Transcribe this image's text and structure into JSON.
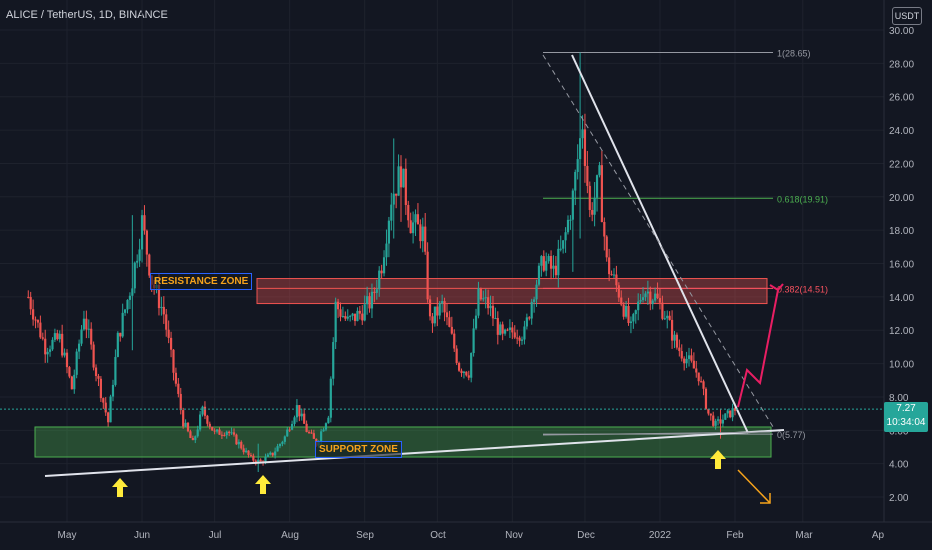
{
  "header": {
    "symbol_line": "ALICE / TetherUS, 1D, BINANCE",
    "currency_badge": "USDT"
  },
  "price_tag": {
    "price": "7.27",
    "countdown": "10:34:04"
  },
  "zones": {
    "resistance_label": "RESISTANCE ZONE",
    "support_label": "SUPPORT ZONE"
  },
  "chart_data": {
    "type": "candlestick",
    "x_axis": {
      "ticks": [
        "May",
        "Jun",
        "Jul",
        "Aug",
        "Sep",
        "Oct",
        "Nov",
        "Dec",
        "2022",
        "Feb",
        "Mar",
        "Ap"
      ]
    },
    "y_axis": {
      "ticks": [
        "30.00",
        "28.00",
        "26.00",
        "24.00",
        "22.00",
        "20.00",
        "18.00",
        "16.00",
        "14.00",
        "12.00",
        "10.00",
        "8.00",
        "6.00",
        "4.00",
        "2.00"
      ],
      "range": [
        0.8,
        30.5
      ]
    },
    "current_price": 7.27,
    "fib_levels": [
      {
        "label": "1(28.65)",
        "value": 28.65,
        "color": "#9598a1"
      },
      {
        "label": "0.618(19.91)",
        "value": 19.91,
        "color": "#4caf50"
      },
      {
        "label": "0.382(14.51)",
        "value": 14.51,
        "color": "#f7525f"
      },
      {
        "label": "0(5.77)",
        "value": 5.77,
        "color": "#9598a1"
      }
    ],
    "resistance_zone": [
      13.6,
      15.1
    ],
    "support_zone": [
      4.4,
      6.2
    ],
    "colors": {
      "up": "#26a69a",
      "down": "#ef5350",
      "background": "#131722"
    },
    "anchors": [
      [
        "Apr 15",
        14
      ],
      [
        "Apr 22",
        11
      ],
      [
        "Apr 28",
        11.5
      ],
      [
        "May 3",
        8.5
      ],
      [
        "May 8",
        13
      ],
      [
        "May 13",
        9.5
      ],
      [
        "May 18",
        6.5
      ],
      [
        "May 22",
        11.5
      ],
      [
        "May 28",
        15
      ],
      [
        "Jun 1",
        18.5
      ],
      [
        "Jun 5",
        15
      ],
      [
        "Jun 10",
        13
      ],
      [
        "Jun 14",
        9.5
      ],
      [
        "Jun 18",
        6.5
      ],
      [
        "Jun 22",
        5.2
      ],
      [
        "Jun 26",
        7.2
      ],
      [
        "Jul 1",
        5.8
      ],
      [
        "Jul 6",
        6
      ],
      [
        "Jul 11",
        5.2
      ],
      [
        "Jul 16",
        4.3
      ],
      [
        "Jul 20",
        4.1
      ],
      [
        "Jul 25",
        4.6
      ],
      [
        "Jul 30",
        5.6
      ],
      [
        "Aug 4",
        7.4
      ],
      [
        "Aug 8",
        6
      ],
      [
        "Aug 12",
        5.2
      ],
      [
        "Aug 17",
        7
      ],
      [
        "Aug 20",
        13.5
      ],
      [
        "Aug 25",
        12.5
      ],
      [
        "Aug 30",
        13
      ],
      [
        "Sep 4",
        13.8
      ],
      [
        "Sep 8",
        16
      ],
      [
        "Sep 12",
        20
      ],
      [
        "Sep 16",
        21.5
      ],
      [
        "Sep 20",
        18.5
      ],
      [
        "Sep 25",
        17.8
      ],
      [
        "Sep 28",
        12.5
      ],
      [
        "Oct 3",
        13.5
      ],
      [
        "Oct 7",
        11.5
      ],
      [
        "Oct 10",
        9.8
      ],
      [
        "Oct 14",
        9.5
      ],
      [
        "Oct 18",
        14
      ],
      [
        "Oct 22",
        13.5
      ],
      [
        "Oct 28",
        11.5
      ],
      [
        "Nov 2",
        12
      ],
      [
        "Nov 6",
        11.8
      ],
      [
        "Nov 10",
        14.5
      ],
      [
        "Nov 14",
        16.2
      ],
      [
        "Nov 18",
        15.5
      ],
      [
        "Nov 22",
        17
      ],
      [
        "Nov 26",
        20
      ],
      [
        "Nov 30",
        24.5
      ],
      [
        "Dec 3",
        19
      ],
      [
        "Dec 7",
        21
      ],
      [
        "Dec 10",
        16
      ],
      [
        "Dec 15",
        14.3
      ],
      [
        "Dec 20",
        12
      ],
      [
        "Dec 25",
        14.5
      ],
      [
        "Dec 30",
        14
      ],
      [
        "Jan 3",
        13
      ],
      [
        "Jan 8",
        11
      ],
      [
        "Jan 12",
        10.3
      ],
      [
        "Jan 17",
        9.3
      ],
      [
        "Jan 21",
        7
      ],
      [
        "Jan 24",
        6.3
      ],
      [
        "Jan 28",
        6.8
      ],
      [
        "Feb 1",
        7.27
      ]
    ],
    "spikes": [
      [
        "May 28",
        18.9,
        10.8
      ],
      [
        "Sep 13",
        23.5,
        17.5
      ],
      [
        "Sep 16",
        22.5,
        18.5
      ],
      [
        "Nov 26",
        20.5,
        15.5
      ],
      [
        "Nov 29",
        28.65,
        17.5
      ],
      [
        "Jul 19",
        5.2,
        3.5
      ],
      [
        "Jan 26",
        7.3,
        5.5
      ]
    ]
  }
}
